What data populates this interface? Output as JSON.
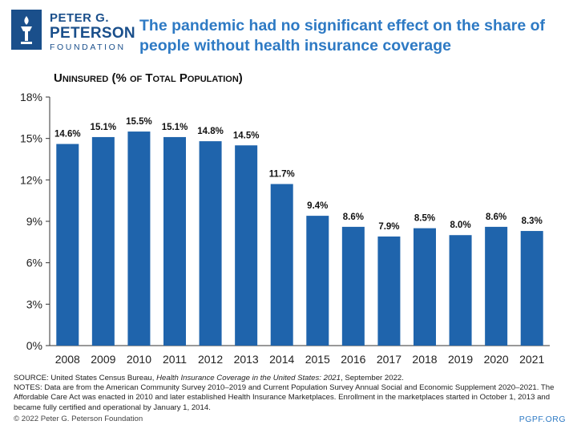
{
  "brand": {
    "name_line1": "PETER G.",
    "name_line2": "PETERSON",
    "name_line3": "FOUNDATION",
    "color": "#1a4f8b"
  },
  "title": "The pandemic had no significant effect on the share of people without health insurance coverage",
  "footer": {
    "source_prefix": "SOURCE: United States Census Bureau, ",
    "source_italic": "Health Insurance Coverage in the United States: 2021",
    "source_suffix": ", September 2022.",
    "notes": "NOTES: Data are from the American Community Survey 2010–2019 and Current Population Survey Annual Social and Economic Supplement 2020–2021. The Affordable Care Act was enacted in 2010 and later established Health Insurance Marketplaces. Enrollment in the marketplaces started in October 1, 2013 and became fully certified and operational by January 1, 2014.",
    "copyright": "© 2022 Peter G. Peterson Foundation",
    "url": "PGPF.ORG"
  },
  "chart_data": {
    "type": "bar",
    "title": "Uninsured (% of Total Population)",
    "xlabel": "",
    "ylabel": "",
    "categories": [
      "2008",
      "2009",
      "2010",
      "2011",
      "2012",
      "2013",
      "2014",
      "2015",
      "2016",
      "2017",
      "2018",
      "2019",
      "2020",
      "2021"
    ],
    "values": [
      14.6,
      15.1,
      15.5,
      15.1,
      14.8,
      14.5,
      11.7,
      9.4,
      8.6,
      7.9,
      8.5,
      8.0,
      8.6,
      8.3
    ],
    "value_labels": [
      "14.6%",
      "15.1%",
      "15.5%",
      "15.1%",
      "14.8%",
      "14.5%",
      "11.7%",
      "9.4%",
      "8.6%",
      "7.9%",
      "8.5%",
      "8.0%",
      "8.6%",
      "8.3%"
    ],
    "y_ticks": [
      0,
      3,
      6,
      9,
      12,
      15,
      18
    ],
    "y_tick_labels": [
      "0%",
      "3%",
      "6%",
      "9%",
      "12%",
      "15%",
      "18%"
    ],
    "ylim": [
      0,
      18
    ],
    "grid": false,
    "bar_color": "#1f64ac"
  }
}
